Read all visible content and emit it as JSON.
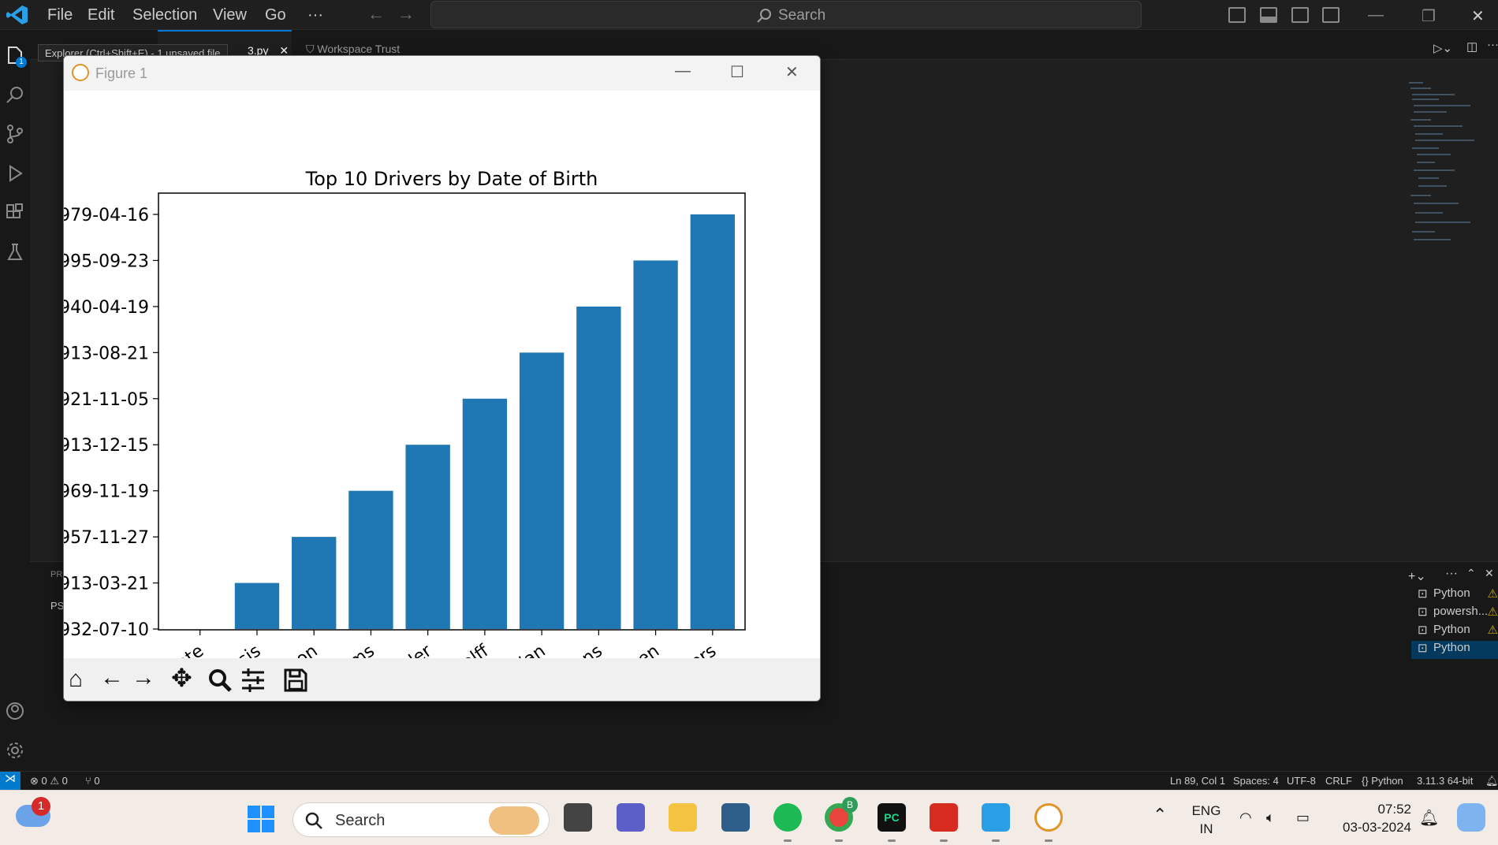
{
  "menu": {
    "file": "File",
    "edit": "Edit",
    "selection": "Selection",
    "view": "View",
    "go": "Go",
    "more": "···"
  },
  "search": {
    "label": "Search"
  },
  "tabs": {
    "explorer_tooltip": "Explorer (Ctrl+Shift+E) - 1 unsaved file",
    "file_tab": "3.py",
    "workspace_tab": "Workspace Trust"
  },
  "activity_badge": "1",
  "figure": {
    "window_title": "Figure 1"
  },
  "chart_data": {
    "type": "bar",
    "title": "Top 10 Drivers by Date of Birth",
    "xlabel": "",
    "ylabel": "",
    "categories": [
      "lo Abate",
      "becassis",
      "Acheson",
      "Adams",
      "Walt Ader",
      "rt Adolff",
      "bashian",
      "t Ahrens",
      "k Aitken",
      "n Albers"
    ],
    "y_ticks": [
      "932-07-10",
      "913-03-21",
      "957-11-27",
      "969-11-19",
      "913-12-15",
      "921-11-05",
      "913-08-21",
      "940-04-19",
      "995-09-23",
      "979-04-16"
    ],
    "values": [
      0,
      1,
      2,
      3,
      4,
      5,
      6,
      7,
      8,
      9
    ],
    "bar_color": "#1f77b4"
  },
  "terminals": [
    {
      "label": "Python",
      "warn": true
    },
    {
      "label": "powersh...",
      "warn": true
    },
    {
      "label": "Python",
      "warn": true
    },
    {
      "label": "Python",
      "warn": false
    }
  ],
  "panel": {
    "left_label_1": "PR",
    "left_label_2": "PS"
  },
  "status": {
    "errors": "0",
    "warnings": "0",
    "ports": "0",
    "position": "Ln 89, Col 1",
    "spaces": "Spaces: 4",
    "encoding": "UTF-8",
    "eol": "CRLF",
    "language": "Python",
    "interpreter": "3.11.3 64-bit"
  },
  "taskbar": {
    "search": "Search",
    "lang1": "ENG",
    "lang2": "IN",
    "time": "07:52",
    "date": "03-03-2024",
    "weather_badge": "1",
    "chrome_badge": "B"
  },
  "colors": {
    "accent": "#007acc",
    "bar": "#1f77b4"
  }
}
